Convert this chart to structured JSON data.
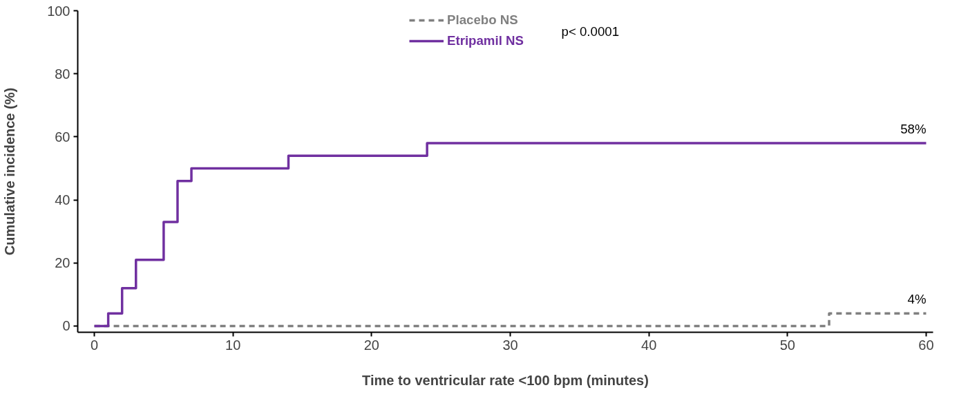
{
  "chart_data": {
    "type": "step",
    "xlabel": "Time to ventricular rate <100 bpm (minutes)",
    "ylabel": "Cumulative incidence (%)",
    "xlim": [
      -1.2,
      60.5
    ],
    "ylim": [
      -2,
      100
    ],
    "xticks": [
      0,
      10,
      20,
      30,
      40,
      50,
      60
    ],
    "yticks": [
      0,
      20,
      40,
      60,
      80,
      100
    ],
    "grid": false,
    "legend": "top",
    "series": [
      {
        "name": "Placebo NS",
        "color": "#808080",
        "line_style": "dashed",
        "x": [
          0,
          53,
          60
        ],
        "values": [
          0,
          4,
          4
        ]
      },
      {
        "name": "Etripamil NS",
        "color": "#7030a0",
        "line_style": "solid",
        "x": [
          0,
          1,
          2,
          3,
          5,
          6,
          7,
          14,
          24,
          60
        ],
        "values": [
          0,
          4,
          12,
          21,
          33,
          46,
          50,
          54,
          58,
          58
        ]
      }
    ],
    "annotations": [
      "p< 0.0001",
      {
        "text": "58%",
        "x": 60,
        "y": 58
      },
      {
        "text": "4%",
        "x": 60,
        "y": 4
      }
    ]
  }
}
